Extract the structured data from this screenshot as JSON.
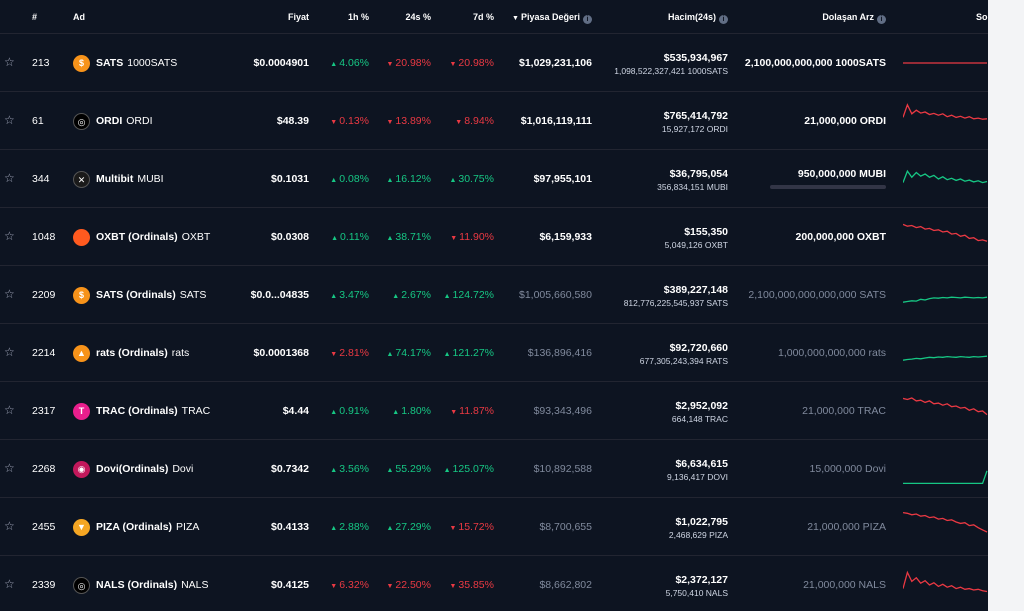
{
  "header": {
    "rank": "#",
    "name": "Ad",
    "price": "Fiyat",
    "change_1h": "1h %",
    "change_24h": "24s %",
    "change_7d": "7d %",
    "market_cap": "Piyasa Değeri",
    "volume": "Hacim(24s)",
    "supply": "Dolaşan Arz",
    "last7": "Son"
  },
  "colors": {
    "up": "#16c784",
    "down": "#ea3943",
    "background": "#0d1421"
  },
  "rows": [
    {
      "rank": "213",
      "name": "SATS",
      "symbol": "1000SATS",
      "icon": "sats-coin-icon",
      "icon_color": "#f7931a",
      "icon_glyph": "$",
      "price": "$0.0004901",
      "c1h": "4.06%",
      "c1h_dir": "up",
      "c24h": "20.98%",
      "c24h_dir": "down",
      "c7d": "20.98%",
      "c7d_dir": "down",
      "mcap": "$1,029,231,106",
      "mcap_dim": false,
      "vol": "$535,934,967",
      "vol_sub": "1,098,522,327,421 1000SATS",
      "supply": "2,100,000,000,000 1000SATS",
      "supply_dim": false,
      "spark_trend": "down",
      "spark": [
        50,
        50,
        50,
        50,
        50,
        50,
        50,
        50,
        50,
        50,
        50,
        50,
        50,
        50,
        50,
        50,
        50,
        50,
        50,
        50
      ]
    },
    {
      "rank": "61",
      "name": "ORDI",
      "symbol": "ORDI",
      "icon": "ordi-coin-icon",
      "icon_color": "#000000",
      "icon_glyph": "◎",
      "price": "$48.39",
      "c1h": "0.13%",
      "c1h_dir": "down",
      "c24h": "13.89%",
      "c24h_dir": "down",
      "c7d": "8.94%",
      "c7d_dir": "down",
      "mcap": "$1,016,119,111",
      "mcap_dim": false,
      "vol": "$765,414,792",
      "vol_sub": "15,927,172 ORDI",
      "supply": "21,000,000 ORDI",
      "supply_dim": false,
      "spark_trend": "down",
      "spark": [
        60,
        95,
        70,
        80,
        72,
        75,
        68,
        71,
        66,
        70,
        62,
        66,
        60,
        63,
        58,
        62,
        56,
        58,
        55,
        56
      ]
    },
    {
      "rank": "344",
      "name": "Multibit",
      "symbol": "MUBI",
      "icon": "multibit-coin-icon",
      "icon_color": "#1a1a1a",
      "icon_glyph": "✕",
      "price": "$0.1031",
      "c1h": "0.08%",
      "c1h_dir": "up",
      "c24h": "16.12%",
      "c24h_dir": "up",
      "c7d": "30.75%",
      "c7d_dir": "up",
      "mcap": "$97,955,101",
      "mcap_dim": false,
      "vol": "$36,795,054",
      "vol_sub": "356,834,151 MUBI",
      "supply": "950,000,000 MUBI",
      "supply_dim": false,
      "supply_bar": true,
      "spark_trend": "up",
      "spark": [
        40,
        72,
        55,
        68,
        58,
        64,
        55,
        60,
        50,
        56,
        48,
        52,
        46,
        50,
        44,
        47,
        42,
        45,
        40,
        43
      ]
    },
    {
      "rank": "1048",
      "name": "OXBT (Ordinals)",
      "symbol": "OXBT",
      "icon": "oxbt-coin-icon",
      "icon_color": "#ff5a1f",
      "icon_glyph": "",
      "price": "$0.0308",
      "c1h": "0.11%",
      "c1h_dir": "up",
      "c24h": "38.71%",
      "c24h_dir": "up",
      "c7d": "11.90%",
      "c7d_dir": "down",
      "mcap": "$6,159,933",
      "mcap_dim": false,
      "vol": "$155,350",
      "vol_sub": "5,049,126 OXBT",
      "supply": "200,000,000 OXBT",
      "supply_dim": false,
      "spark_trend": "down",
      "spark": [
        85,
        80,
        82,
        76,
        79,
        72,
        74,
        68,
        70,
        64,
        66,
        58,
        60,
        52,
        55,
        46,
        48,
        40,
        42,
        38
      ]
    },
    {
      "rank": "2209",
      "name": "SATS (Ordinals)",
      "symbol": "SATS",
      "icon": "sats-ordinals-coin-icon",
      "icon_color": "#f7931a",
      "icon_glyph": "$",
      "price": "$0.0...04835",
      "c1h": "3.47%",
      "c1h_dir": "up",
      "c24h": "2.67%",
      "c24h_dir": "up",
      "c7d": "124.72%",
      "c7d_dir": "up",
      "mcap": "$1,005,660,580",
      "mcap_dim": true,
      "vol": "$389,227,148",
      "vol_sub": "812,776,225,545,937 SATS",
      "supply": "2,100,000,000,000,000 SATS",
      "supply_dim": true,
      "spark_trend": "up",
      "spark": [
        30,
        32,
        34,
        33,
        38,
        36,
        40,
        42,
        41,
        43,
        42,
        44,
        43,
        42,
        44,
        43,
        42,
        43,
        42,
        44
      ]
    },
    {
      "rank": "2214",
      "name": "rats (Ordinals)",
      "symbol": "rats",
      "icon": "rats-coin-icon",
      "icon_color": "#f7931a",
      "icon_glyph": "▲",
      "price": "$0.0001368",
      "c1h": "2.81%",
      "c1h_dir": "down",
      "c24h": "74.17%",
      "c24h_dir": "up",
      "c7d": "121.27%",
      "c7d_dir": "up",
      "mcap": "$136,896,416",
      "mcap_dim": true,
      "vol": "$92,720,660",
      "vol_sub": "677,305,243,394 RATS",
      "supply": "1,000,000,000,000 rats",
      "supply_dim": true,
      "spark_trend": "up",
      "spark": [
        30,
        32,
        33,
        35,
        34,
        36,
        38,
        37,
        39,
        38,
        40,
        39,
        38,
        40,
        39,
        38,
        40,
        39,
        40,
        41
      ]
    },
    {
      "rank": "2317",
      "name": "TRAC (Ordinals)",
      "symbol": "TRAC",
      "icon": "trac-coin-icon",
      "icon_color": "#e91e8c",
      "icon_glyph": "T",
      "price": "$4.44",
      "c1h": "0.91%",
      "c1h_dir": "up",
      "c24h": "1.80%",
      "c24h_dir": "up",
      "c7d": "11.87%",
      "c7d_dir": "down",
      "mcap": "$93,343,496",
      "mcap_dim": true,
      "vol": "$2,952,092",
      "vol_sub": "664,148 TRAC",
      "supply": "21,000,000 TRAC",
      "supply_dim": true,
      "spark_trend": "down",
      "spark": [
        85,
        82,
        86,
        78,
        80,
        74,
        78,
        70,
        72,
        66,
        70,
        62,
        64,
        58,
        60,
        52,
        56,
        48,
        50,
        40
      ]
    },
    {
      "rank": "2268",
      "name": "Dovi(Ordinals)",
      "symbol": "Dovi",
      "icon": "dovi-coin-icon",
      "icon_color": "#c2185b",
      "icon_glyph": "◉",
      "price": "$0.7342",
      "c1h": "3.56%",
      "c1h_dir": "up",
      "c24h": "55.29%",
      "c24h_dir": "up",
      "c7d": "125.07%",
      "c7d_dir": "up",
      "mcap": "$10,892,588",
      "mcap_dim": true,
      "vol": "$6,634,615",
      "vol_sub": "9,136,417 DOVI",
      "supply": "15,000,000 Dovi",
      "supply_dim": true,
      "spark_trend": "up",
      "spark": [
        10,
        10,
        10,
        10,
        10,
        10,
        10,
        10,
        10,
        10,
        10,
        10,
        10,
        10,
        10,
        10,
        10,
        10,
        10,
        45
      ]
    },
    {
      "rank": "2455",
      "name": "PIZA (Ordinals)",
      "symbol": "PIZA",
      "icon": "piza-coin-icon",
      "icon_color": "#f5a623",
      "icon_glyph": "▼",
      "price": "$0.4133",
      "c1h": "2.88%",
      "c1h_dir": "up",
      "c24h": "27.29%",
      "c24h_dir": "up",
      "c7d": "15.72%",
      "c7d_dir": "down",
      "mcap": "$8,700,655",
      "mcap_dim": true,
      "vol": "$1,022,795",
      "vol_sub": "2,468,629 PIZA",
      "supply": "21,000,000 PIZA",
      "supply_dim": true,
      "spark_trend": "down",
      "spark": [
        90,
        88,
        84,
        86,
        80,
        82,
        76,
        78,
        72,
        74,
        68,
        70,
        64,
        60,
        62,
        54,
        56,
        48,
        42,
        36
      ]
    },
    {
      "rank": "2339",
      "name": "NALS (Ordinals)",
      "symbol": "NALS",
      "icon": "nals-coin-icon",
      "icon_color": "#000000",
      "icon_glyph": "◎",
      "price": "$0.4125",
      "c1h": "6.32%",
      "c1h_dir": "down",
      "c24h": "22.50%",
      "c24h_dir": "down",
      "c7d": "35.85%",
      "c7d_dir": "down",
      "mcap": "$8,662,802",
      "mcap_dim": true,
      "vol": "$2,372,127",
      "vol_sub": "5,750,410 NALS",
      "supply": "21,000,000 NALS",
      "supply_dim": true,
      "spark_trend": "down",
      "spark": [
        40,
        85,
        60,
        70,
        55,
        62,
        50,
        56,
        46,
        52,
        44,
        48,
        40,
        44,
        38,
        40,
        36,
        38,
        34,
        32
      ]
    }
  ]
}
